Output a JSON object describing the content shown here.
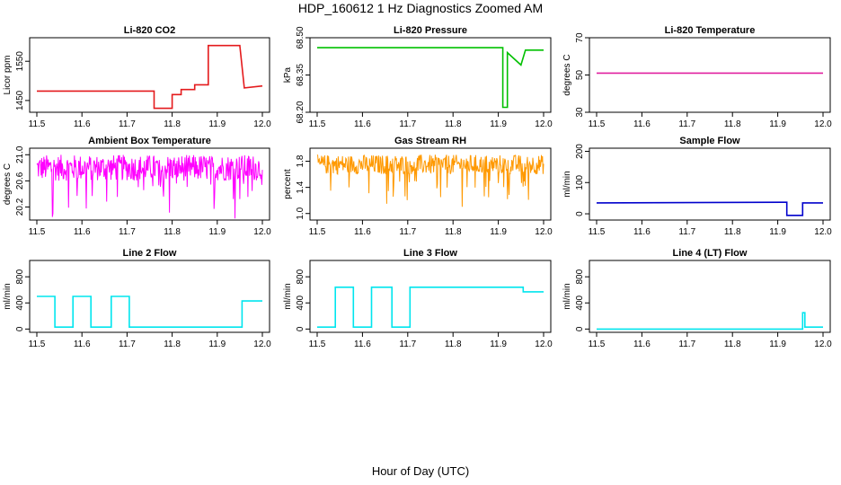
{
  "title": "HDP_160612  1 Hz Diagnostics Zoomed AM",
  "xlabel": "Hour of Day (UTC)",
  "chart_data": [
    {
      "type": "line",
      "title": "Li-820 CO2",
      "ylabel": "Licor ppm",
      "color": "#e41a1c",
      "xlim": [
        11.5,
        12.0
      ],
      "ylim": [
        1420,
        1610
      ],
      "xticks": [
        "11.5",
        "11.6",
        "11.7",
        "11.8",
        "11.9",
        "12.0"
      ],
      "yticks": [
        "1450",
        "1550"
      ],
      "series": [
        {
          "x": [
            11.5,
            11.76,
            11.76,
            11.8,
            11.8,
            11.82,
            11.82,
            11.85,
            11.85,
            11.88,
            11.88,
            11.95,
            11.95,
            11.96,
            11.96,
            12.0
          ],
          "y": [
            1474,
            1474,
            1430,
            1430,
            1465,
            1465,
            1478,
            1478,
            1490,
            1490,
            1590,
            1590,
            1590,
            1482,
            1482,
            1487
          ]
        }
      ]
    },
    {
      "type": "line",
      "title": "Li-820 Pressure",
      "ylabel": "kPa",
      "color": "#00c000",
      "xlim": [
        11.5,
        12.0
      ],
      "ylim": [
        68.2,
        68.5
      ],
      "xticks": [
        "11.5",
        "11.6",
        "11.7",
        "11.8",
        "11.9",
        "12.0"
      ],
      "yticks": [
        "68.20",
        "68.35",
        "68.50"
      ],
      "series": [
        {
          "x": [
            11.5,
            11.91,
            11.91,
            11.92,
            11.92,
            11.95,
            11.96,
            11.98,
            12.0
          ],
          "y": [
            68.46,
            68.46,
            68.22,
            68.22,
            68.44,
            68.39,
            68.45,
            68.45,
            68.45
          ]
        }
      ]
    },
    {
      "type": "line",
      "title": "Li-820 Temperature",
      "ylabel": "degrees C",
      "color": "#e0209f",
      "xlim": [
        11.5,
        12.0
      ],
      "ylim": [
        30,
        70
      ],
      "xticks": [
        "11.5",
        "11.6",
        "11.7",
        "11.8",
        "11.9",
        "12.0"
      ],
      "yticks": [
        "30",
        "50",
        "70"
      ],
      "series": [
        {
          "x": [
            11.5,
            12.0
          ],
          "y": [
            51,
            51
          ]
        }
      ]
    },
    {
      "type": "line",
      "title": "Ambient Box Temperature",
      "ylabel": "degrees C",
      "color": "#ff00ff",
      "xlim": [
        11.5,
        12.0
      ],
      "ylim": [
        20.0,
        21.1
      ],
      "xticks": [
        "11.5",
        "11.6",
        "11.7",
        "11.8",
        "11.9",
        "12.0"
      ],
      "yticks": [
        "20.2",
        "20.6",
        "21.0"
      ],
      "series": [
        {
          "x": [
            11.5,
            11.6,
            11.7,
            11.8,
            11.9,
            12.0
          ],
          "y": [
            20.8,
            20.8,
            20.8,
            20.8,
            20.8,
            20.8
          ],
          "noise": {
            "lo": 20.6,
            "hi": 21.0,
            "spikes": [
              20.0,
              20.3,
              20.5
            ]
          }
        }
      ]
    },
    {
      "type": "line",
      "title": "Gas Stream RH",
      "ylabel": "percent",
      "color": "#ff9900",
      "xlim": [
        11.5,
        12.0
      ],
      "ylim": [
        0.9,
        2.0
      ],
      "xticks": [
        "11.5",
        "11.6",
        "11.7",
        "11.8",
        "11.9",
        "12.0"
      ],
      "yticks": [
        "1.0",
        "1.4",
        "1.8"
      ],
      "series": [
        {
          "x": [
            11.5,
            11.6,
            11.7,
            11.8,
            11.9,
            12.0
          ],
          "y": [
            1.75,
            1.75,
            1.75,
            1.75,
            1.75,
            1.75
          ],
          "noise": {
            "lo": 1.6,
            "hi": 1.9,
            "spikes": [
              1.0,
              1.2,
              1.35
            ]
          }
        }
      ]
    },
    {
      "type": "line",
      "title": "Sample Flow",
      "ylabel": "ml/min",
      "color": "#0000cc",
      "xlim": [
        11.5,
        12.0
      ],
      "ylim": [
        -20,
        210
      ],
      "xticks": [
        "11.5",
        "11.6",
        "11.7",
        "11.8",
        "11.9",
        "12.0"
      ],
      "yticks": [
        "0",
        "100",
        "200"
      ],
      "series": [
        {
          "x": [
            11.5,
            11.91,
            11.92,
            11.92,
            11.955,
            11.955,
            12.0
          ],
          "y": [
            35,
            37,
            37,
            -5,
            -5,
            35,
            35
          ]
        }
      ]
    },
    {
      "type": "line",
      "title": "Line 2 Flow",
      "ylabel": "ml/min",
      "color": "#00e5ee",
      "xlim": [
        11.5,
        12.0
      ],
      "ylim": [
        -50,
        1050
      ],
      "xticks": [
        "11.5",
        "11.6",
        "11.7",
        "11.8",
        "11.9",
        "12.0"
      ],
      "yticks": [
        "0",
        "400",
        "800"
      ],
      "series": [
        {
          "x": [
            11.5,
            11.54,
            11.54,
            11.58,
            11.58,
            11.62,
            11.62,
            11.665,
            11.665,
            11.705,
            11.705,
            11.955,
            11.955,
            12.0
          ],
          "y": [
            500,
            500,
            30,
            30,
            500,
            500,
            30,
            30,
            500,
            500,
            30,
            30,
            430,
            430
          ]
        }
      ]
    },
    {
      "type": "line",
      "title": "Line 3 Flow",
      "ylabel": "ml/min",
      "color": "#00e5ee",
      "xlim": [
        11.5,
        12.0
      ],
      "ylim": [
        -50,
        1050
      ],
      "xticks": [
        "11.5",
        "11.6",
        "11.7",
        "11.8",
        "11.9",
        "12.0"
      ],
      "yticks": [
        "0",
        "400",
        "800"
      ],
      "series": [
        {
          "x": [
            11.5,
            11.54,
            11.54,
            11.58,
            11.58,
            11.62,
            11.62,
            11.665,
            11.665,
            11.705,
            11.705,
            11.955,
            11.955,
            12.0
          ],
          "y": [
            30,
            30,
            640,
            640,
            30,
            30,
            640,
            640,
            30,
            30,
            640,
            640,
            570,
            570
          ]
        }
      ]
    },
    {
      "type": "line",
      "title": "Line 4 (LT) Flow",
      "ylabel": "ml/min",
      "color": "#00e5ee",
      "xlim": [
        11.5,
        12.0
      ],
      "ylim": [
        -50,
        1050
      ],
      "xticks": [
        "11.5",
        "11.6",
        "11.7",
        "11.8",
        "11.9",
        "12.0"
      ],
      "yticks": [
        "0",
        "400",
        "800"
      ],
      "series": [
        {
          "x": [
            11.5,
            11.955,
            11.955,
            11.96,
            11.96,
            12.0
          ],
          "y": [
            0,
            0,
            250,
            250,
            30,
            30
          ]
        }
      ]
    }
  ]
}
